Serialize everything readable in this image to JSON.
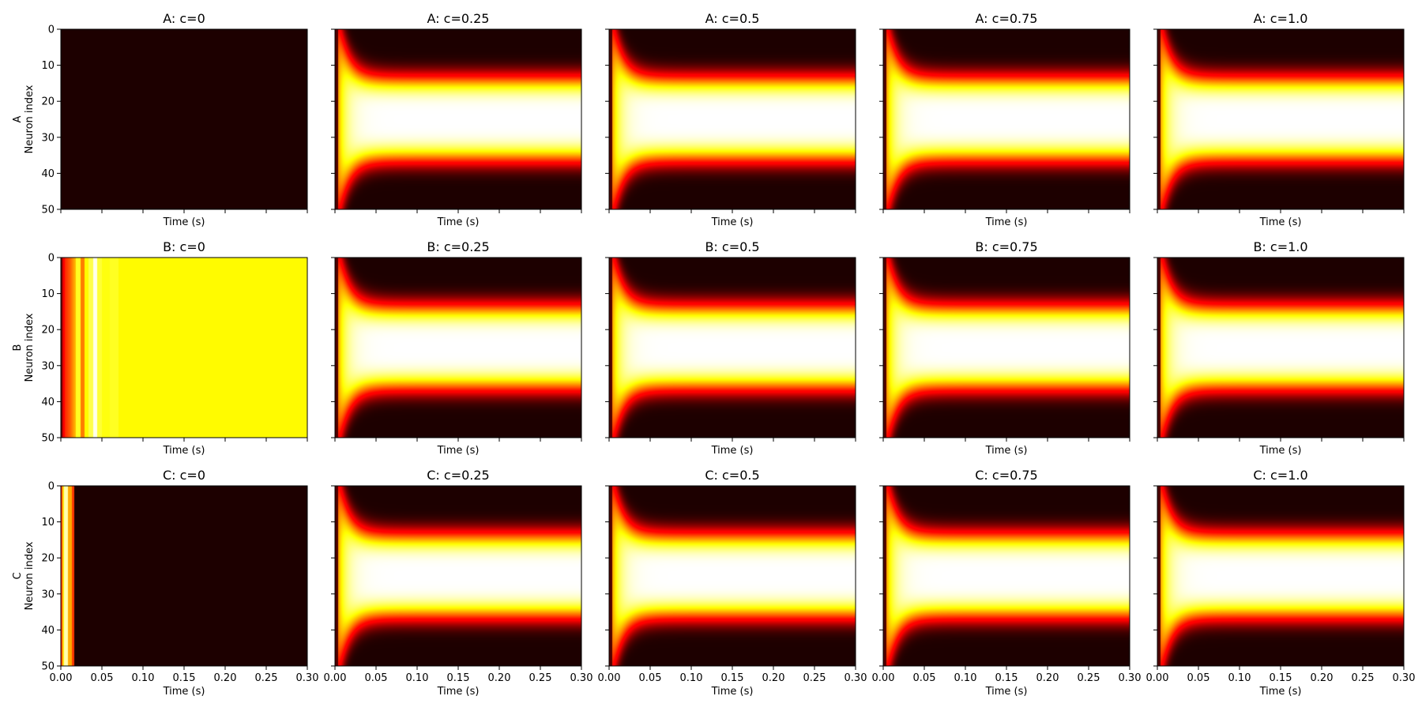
{
  "chart_data": {
    "type": "heatmap",
    "colormap": "hot",
    "rows": [
      "A",
      "B",
      "C"
    ],
    "row_labels": [
      "A",
      "B",
      "C"
    ],
    "ylabel": "Neuron index",
    "xlabel": "Time (s)",
    "columns": [
      "c=0",
      "c=0.25",
      "c=0.5",
      "c=0.75",
      "c=1.0"
    ],
    "panel_titles": [
      [
        "A: c=0",
        "A: c=0.25",
        "A: c=0.5",
        "A: c=0.75",
        "A: c=1.0"
      ],
      [
        "B: c=0",
        "B: c=0.25",
        "B: c=0.5",
        "B: c=0.75",
        "B: c=1.0"
      ],
      [
        "C: c=0",
        "C: c=0.25",
        "C: c=0.5",
        "C: c=0.75",
        "C: c=1.0"
      ]
    ],
    "xlim": [
      0,
      0.3
    ],
    "ylim": [
      50,
      0
    ],
    "x_ticks": [
      0.0,
      0.05,
      0.1,
      0.15,
      0.2,
      0.25,
      0.3
    ],
    "x_tick_labels": [
      "0.00",
      "0.05",
      "0.10",
      "0.15",
      "0.20",
      "0.25",
      "0.30"
    ],
    "y_ticks": [
      0,
      10,
      20,
      30,
      40,
      50
    ],
    "y_tick_labels": [
      "0",
      "10",
      "20",
      "30",
      "40",
      "50"
    ],
    "x_ticklabels_bottom_row_only": true,
    "y_ticklabels_first_column_only": true,
    "panel_patterns": [
      [
        "silent",
        "bump",
        "bump",
        "bump",
        "bump"
      ],
      [
        "uniform",
        "bump",
        "bump",
        "bump",
        "bump"
      ],
      [
        "transient",
        "bump",
        "bump",
        "bump",
        "bump"
      ]
    ],
    "bump": {
      "center_neuron": 25,
      "steady_halfwidth": 12,
      "onset_time": 0.004
    }
  }
}
